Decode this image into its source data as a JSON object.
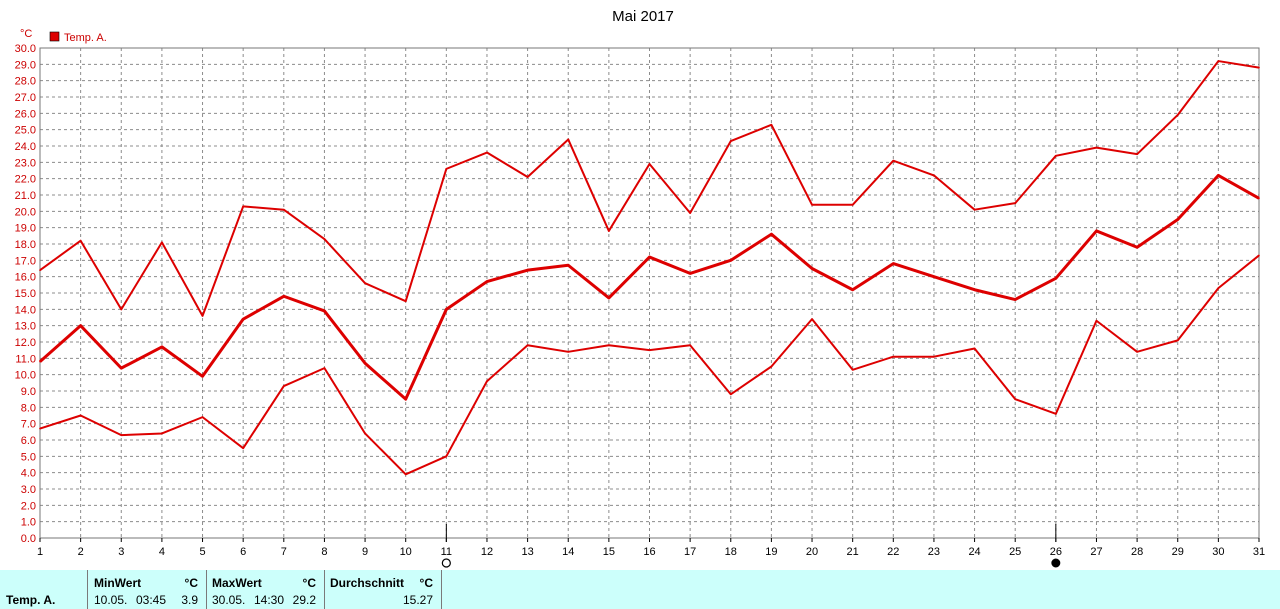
{
  "chart_data": {
    "type": "line",
    "title": "Mai 2017",
    "ylabel": "°C",
    "ylim": [
      0,
      30
    ],
    "yticks": [
      "0.0",
      "1.0",
      "2.0",
      "3.0",
      "4.0",
      "5.0",
      "6.0",
      "7.0",
      "8.0",
      "9.0",
      "10.0",
      "11.0",
      "12.0",
      "13.0",
      "14.0",
      "15.0",
      "16.0",
      "17.0",
      "18.0",
      "19.0",
      "20.0",
      "21.0",
      "22.0",
      "23.0",
      "24.0",
      "25.0",
      "26.0",
      "27.0",
      "28.0",
      "29.0",
      "30.0"
    ],
    "x": [
      1,
      2,
      3,
      4,
      5,
      6,
      7,
      8,
      9,
      10,
      11,
      12,
      13,
      14,
      15,
      16,
      17,
      18,
      19,
      20,
      21,
      22,
      23,
      24,
      25,
      26,
      27,
      28,
      29,
      30,
      31
    ],
    "xticks": [
      "1",
      "2",
      "3",
      "4",
      "5",
      "6",
      "7",
      "8",
      "9",
      "10",
      "11",
      "12",
      "13",
      "14",
      "15",
      "16",
      "17",
      "18",
      "19",
      "20",
      "21",
      "22",
      "23",
      "24",
      "25",
      "26",
      "27",
      "28",
      "29",
      "30",
      "31"
    ],
    "grid": true,
    "legend": [
      {
        "name": "Temp. A.",
        "color": "#dd0000"
      }
    ],
    "legend_position": "top-left",
    "markers": [
      {
        "x": 11,
        "symbol": "open-circle"
      },
      {
        "x": 26,
        "symbol": "filled-circle"
      }
    ],
    "series": [
      {
        "role": "max",
        "color": "#dd0000",
        "values": [
          16.4,
          18.2,
          14.0,
          18.1,
          13.6,
          20.3,
          20.1,
          18.3,
          15.6,
          14.5,
          22.6,
          23.6,
          22.1,
          24.4,
          18.8,
          22.9,
          19.9,
          24.3,
          25.3,
          20.4,
          20.4,
          23.1,
          22.2,
          20.1,
          20.5,
          23.4,
          23.9,
          23.5,
          25.9,
          29.2,
          28.8
        ]
      },
      {
        "role": "avg",
        "color": "#dd0000",
        "values": [
          10.8,
          13.0,
          10.4,
          11.7,
          9.9,
          13.4,
          14.8,
          13.9,
          10.7,
          8.5,
          14.0,
          15.7,
          16.4,
          16.7,
          14.7,
          17.2,
          16.2,
          17.0,
          18.6,
          16.5,
          15.2,
          16.8,
          16.0,
          15.2,
          14.6,
          15.9,
          18.8,
          17.8,
          19.5,
          22.2,
          20.8
        ]
      },
      {
        "role": "min",
        "color": "#dd0000",
        "values": [
          6.7,
          7.5,
          6.3,
          6.4,
          7.4,
          5.5,
          9.3,
          10.4,
          6.4,
          3.9,
          5.0,
          9.6,
          11.8,
          11.4,
          11.8,
          11.5,
          11.8,
          8.8,
          10.5,
          13.4,
          10.3,
          11.1,
          11.1,
          11.6,
          8.5,
          7.6,
          13.3,
          11.4,
          12.1,
          15.3,
          17.3
        ]
      }
    ]
  },
  "footer": {
    "series_label": "Temp. A.",
    "min": {
      "header": "MinWert",
      "unit": "°C",
      "date": "10.05.",
      "time": "03:45",
      "value": "3.9"
    },
    "max": {
      "header": "MaxWert",
      "unit": "°C",
      "date": "30.05.",
      "time": "14:30",
      "value": "29.2"
    },
    "avg": {
      "header": "Durchschnitt",
      "unit": "°C",
      "value": "15.27"
    }
  }
}
